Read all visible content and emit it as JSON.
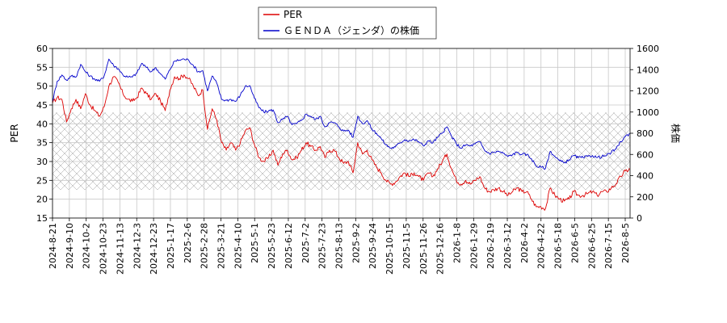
{
  "chart_data": {
    "type": "line",
    "legend": {
      "placement": "top-center"
    },
    "grid": true,
    "x_ticks": [
      "2024-8-21",
      "2024-9-10",
      "2024-10-2",
      "2024-10-23",
      "2024-11-13",
      "2024-12-3",
      "2024-12-23",
      "2025-1-17",
      "2025-2-6",
      "2025-2-28",
      "2025-3-21",
      "2025-4-10",
      "2025-5-1",
      "2025-5-23",
      "2025-6-12",
      "2025-7-2",
      "2025-7-23",
      "2025-8-13",
      "2025-9-2",
      "2025-9-24",
      "2025-10-15",
      "2025-11-5",
      "2025-11-26",
      "2025-12-16",
      "2026-1-8",
      "2026-1-29",
      "2026-2-19",
      "2026-3-12",
      "2026-4-2",
      "2026-4-22",
      "2026-5-18",
      "2026-6-5",
      "2026-6-25",
      "2026-7-15",
      "2026-8-5"
    ],
    "left_axis": {
      "label": "PER",
      "ticks": [
        15,
        20,
        25,
        30,
        35,
        40,
        45,
        50,
        55,
        60
      ],
      "range": [
        15,
        60
      ]
    },
    "right_axis": {
      "label": "株価",
      "ticks": [
        0,
        200,
        400,
        600,
        800,
        1000,
        1200,
        1400,
        1600
      ],
      "range": [
        0,
        1600
      ]
    },
    "hatched_band": {
      "axis": "left",
      "range": [
        22.5,
        43
      ]
    },
    "series": [
      {
        "name": "PER",
        "axis": "left",
        "color": "#dd0000",
        "values": [
          45.5,
          47,
          46.5,
          40.5,
          44,
          46.5,
          44,
          48,
          45,
          43.5,
          42,
          44.5,
          50,
          52.5,
          51,
          48,
          46.5,
          46,
          47,
          49.5,
          48,
          46.5,
          48,
          46,
          43.5,
          49,
          52.5,
          52,
          53,
          52,
          50,
          47.5,
          49,
          38.5,
          44,
          41,
          35,
          33,
          35,
          33,
          35,
          38,
          39,
          34.5,
          31,
          30,
          31,
          33,
          29,
          32,
          33,
          30.5,
          31,
          33,
          35,
          34,
          33,
          34,
          31,
          33,
          33,
          31,
          29.5,
          30,
          27,
          35,
          32,
          33,
          30.5,
          28.5,
          27,
          25,
          24,
          24.5,
          26,
          27,
          26,
          27,
          26,
          25,
          27,
          26,
          28,
          30,
          32,
          28,
          25,
          24,
          25,
          24,
          25,
          26,
          23,
          22,
          22.5,
          23,
          22,
          21,
          22,
          23,
          22,
          22,
          20,
          18,
          18,
          17.5,
          23,
          21,
          20,
          19.5,
          20,
          22,
          21,
          21,
          21.5,
          22,
          21,
          22,
          22,
          23,
          24,
          26,
          27.5,
          28
        ]
      },
      {
        "name": "ＧＥＮＤＡ（ジェンダ）の株価",
        "axis": "right",
        "color": "#0000cc",
        "values": [
          1100,
          1290,
          1350,
          1300,
          1340,
          1330,
          1450,
          1380,
          1340,
          1310,
          1290,
          1340,
          1500,
          1440,
          1410,
          1350,
          1330,
          1330,
          1370,
          1460,
          1420,
          1380,
          1420,
          1360,
          1310,
          1400,
          1480,
          1490,
          1500,
          1490,
          1440,
          1380,
          1390,
          1200,
          1340,
          1270,
          1120,
          1110,
          1120,
          1100,
          1160,
          1240,
          1250,
          1130,
          1040,
          1000,
          1010,
          1020,
          900,
          930,
          960,
          880,
          890,
          920,
          980,
          960,
          930,
          960,
          860,
          900,
          900,
          860,
          820,
          830,
          760,
          960,
          890,
          920,
          840,
          800,
          750,
          690,
          660,
          670,
          710,
          740,
          730,
          740,
          720,
          680,
          730,
          710,
          760,
          800,
          860,
          770,
          700,
          660,
          690,
          680,
          700,
          720,
          640,
          610,
          620,
          630,
          610,
          580,
          600,
          620,
          600,
          600,
          560,
          490,
          480,
          470,
          630,
          580,
          540,
          520,
          550,
          590,
          570,
          570,
          580,
          590,
          570,
          580,
          590,
          620,
          650,
          720,
          770,
          800
        ]
      }
    ]
  }
}
